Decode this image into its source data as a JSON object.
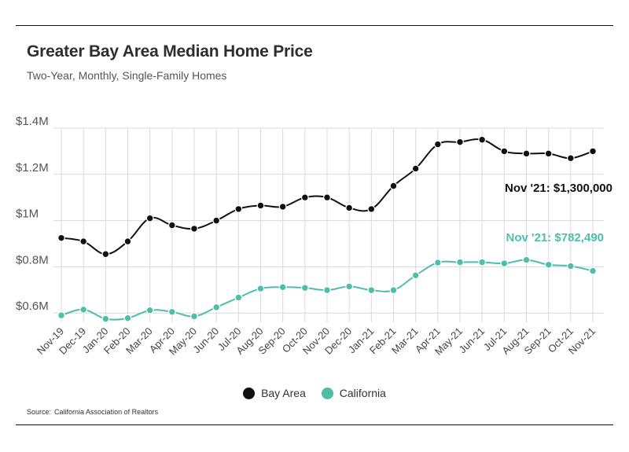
{
  "header": {
    "title": "Greater Bay Area Median Home Price",
    "subtitle": "Two-Year, Monthly, Single-Family Homes"
  },
  "footer": {
    "source_label": "Source:",
    "source_text": "California Association of Realtors"
  },
  "colors": {
    "bay_area": "#111111",
    "california": "#4dbfa8",
    "grid": "#d9d9d9"
  },
  "chart_data": {
    "type": "line",
    "title": "Greater Bay Area Median Home Price",
    "subtitle": "Two-Year, Monthly, Single-Family Homes",
    "xlabel": "",
    "ylabel": "",
    "ylim": [
      560000,
      1400000
    ],
    "grid": true,
    "legend_position": "bottom-center",
    "y_ticks": [
      {
        "value": 600000,
        "label": "$0.6M"
      },
      {
        "value": 800000,
        "label": "$0.8M"
      },
      {
        "value": 1000000,
        "label": "$1M"
      },
      {
        "value": 1200000,
        "label": "$1.2M"
      },
      {
        "value": 1400000,
        "label": "$1.4M"
      }
    ],
    "categories": [
      "Nov-19",
      "Dec-19",
      "Jan-20",
      "Feb-20",
      "Mar-20",
      "Apr-20",
      "May-20",
      "Jun-20",
      "Jul-20",
      "Aug-20",
      "Sep-20",
      "Oct-20",
      "Nov-20",
      "Dec-20",
      "Jan-21",
      "Feb-21",
      "Mar-21",
      "Apr-21",
      "May-21",
      "Jun-21",
      "Jul-21",
      "Aug-21",
      "Sep-21",
      "Oct-21",
      "Nov-21"
    ],
    "series": [
      {
        "name": "Bay Area",
        "color": "#111111",
        "values": [
          925000,
          910000,
          855000,
          910000,
          1010000,
          980000,
          965000,
          1000000,
          1050000,
          1065000,
          1060000,
          1100000,
          1100000,
          1055000,
          1050000,
          1150000,
          1225000,
          1330000,
          1340000,
          1350000,
          1300000,
          1290000,
          1290000,
          1270000,
          1300000
        ],
        "annotation": "Nov '21: $1,300,000"
      },
      {
        "name": "California",
        "color": "#4dbfa8",
        "values": [
          590000,
          615000,
          575000,
          578000,
          612000,
          605000,
          586000,
          625000,
          667000,
          706000,
          712000,
          709000,
          699000,
          715000,
          699000,
          699000,
          763000,
          818000,
          820000,
          820000,
          815000,
          830000,
          809000,
          803000,
          782490
        ],
        "annotation": "Nov '21: $782,490"
      }
    ]
  }
}
